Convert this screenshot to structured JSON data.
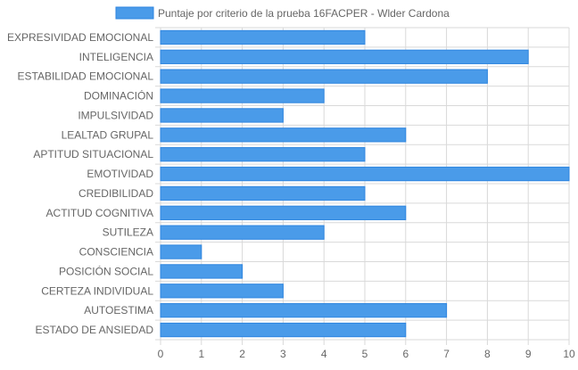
{
  "colors": {
    "bar_fill": "#4a9be9",
    "bar_stroke": "#2f86e0",
    "grid": "#d9d9d9",
    "axis_text": "#666666"
  },
  "chart_data": {
    "type": "bar",
    "orientation": "horizontal",
    "legend": {
      "position": "top",
      "label": "Puntaje por criterio de la prueba 16FACPER - Wlder Cardona"
    },
    "categories": [
      "EXPRESIVIDAD EMOCIONAL",
      "INTELIGENCIA",
      "ESTABILIDAD EMOCIONAL",
      "DOMINACIÓN",
      "IMPULSIVIDAD",
      "LEALTAD GRUPAL",
      "APTITUD SITUACIONAL",
      "EMOTIVIDAD",
      "CREDIBILIDAD",
      "ACTITUD COGNITIVA",
      "SUTILEZA",
      "CONSCIENCIA",
      "POSICIÓN SOCIAL",
      "CERTEZA INDIVIDUAL",
      "AUTOESTIMA",
      "ESTADO DE ANSIEDAD"
    ],
    "series": [
      {
        "name": "Puntaje por criterio de la prueba 16FACPER - Wlder Cardona",
        "values": [
          5,
          9,
          8,
          4,
          3,
          6,
          5,
          10,
          5,
          6,
          4,
          1,
          2,
          3,
          7,
          6
        ]
      }
    ],
    "xlim": [
      0,
      10
    ],
    "x_ticks": [
      "0",
      "1",
      "2",
      "3",
      "4",
      "5",
      "6",
      "7",
      "8",
      "9",
      "10"
    ],
    "grid": true
  }
}
